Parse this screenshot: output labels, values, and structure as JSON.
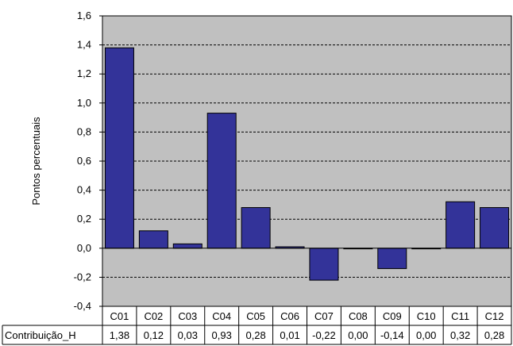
{
  "chart_data": {
    "type": "bar",
    "ylabel": "Pontos percentuais",
    "ylim": [
      -0.4,
      1.6
    ],
    "yticks": [
      "1,6",
      "1,4",
      "1,2",
      "1,0",
      "0,8",
      "0,6",
      "0,4",
      "0,2",
      "0,0",
      "-0,2",
      "-0,4"
    ],
    "ytick_values": [
      1.6,
      1.4,
      1.2,
      1.0,
      0.8,
      0.6,
      0.4,
      0.2,
      0.0,
      -0.2,
      -0.4
    ],
    "grid": "horizontal-dashed",
    "categories": [
      "C01",
      "C02",
      "C03",
      "C04",
      "C05",
      "C06",
      "C07",
      "C08",
      "C09",
      "C10",
      "C11",
      "C12"
    ],
    "series": [
      {
        "name": "Contribuição_H",
        "values": [
          1.38,
          0.12,
          0.03,
          0.93,
          0.28,
          0.01,
          -0.22,
          0.0,
          -0.14,
          0.0,
          0.32,
          0.28
        ],
        "labels": [
          "1,38",
          "0,12",
          "0,03",
          "0,93",
          "0,28",
          "0,01",
          "-0,22",
          "0,00",
          "-0,14",
          "0,00",
          "0,32",
          "0,28"
        ],
        "color": "#333399"
      }
    ],
    "plot_background": "#c0c0c0",
    "data_table": true
  }
}
